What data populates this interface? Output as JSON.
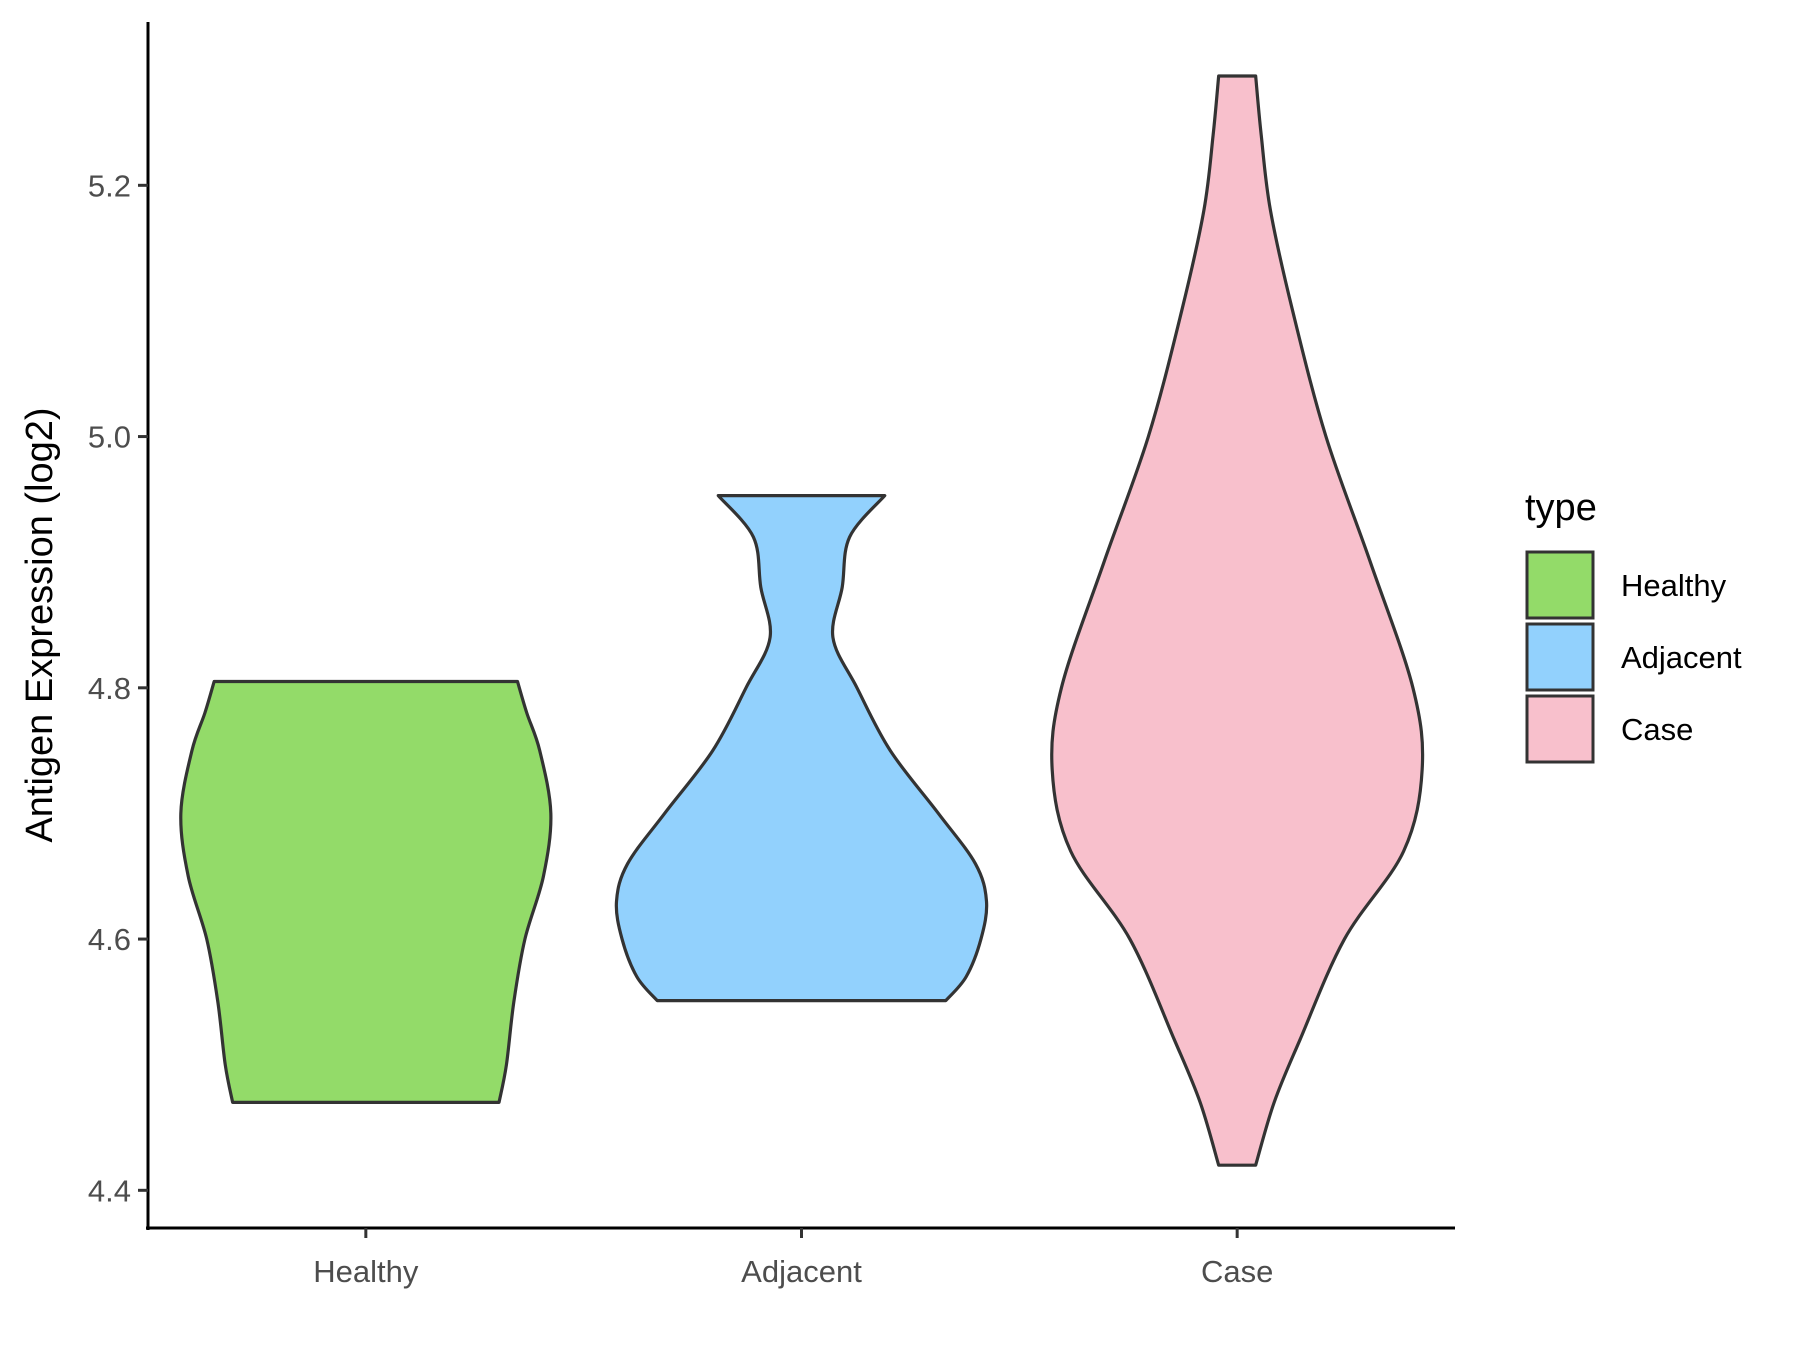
{
  "chart_data": {
    "type": "violin",
    "ylabel": "Antigen Expression (log2)",
    "xlabel": "",
    "ylim": [
      4.37,
      5.33
    ],
    "yticks": [
      4.4,
      4.6,
      4.8,
      5.0,
      5.2
    ],
    "ytick_labels": [
      "4.4",
      "4.6",
      "4.8",
      "5.0",
      "5.2"
    ],
    "categories": [
      "Healthy",
      "Adjacent",
      "Case"
    ],
    "grid": false,
    "legend": {
      "title": "type",
      "position": "right",
      "entries": [
        "Healthy",
        "Adjacent",
        "Case"
      ]
    },
    "series": [
      {
        "category": "Healthy",
        "color": "#93DB69",
        "min": 4.47,
        "max": 4.805,
        "density": [
          [
            4.47,
            0.72
          ],
          [
            4.5,
            0.76
          ],
          [
            4.55,
            0.8
          ],
          [
            4.6,
            0.86
          ],
          [
            4.65,
            0.96
          ],
          [
            4.7,
            1.0
          ],
          [
            4.75,
            0.94
          ],
          [
            4.78,
            0.87
          ],
          [
            4.805,
            0.82
          ]
        ]
      },
      {
        "category": "Adjacent",
        "color": "#92D1FD",
        "min": 4.551,
        "max": 4.953,
        "density": [
          [
            4.551,
            0.78
          ],
          [
            4.57,
            0.89
          ],
          [
            4.6,
            0.97
          ],
          [
            4.63,
            1.0
          ],
          [
            4.66,
            0.94
          ],
          [
            4.7,
            0.74
          ],
          [
            4.75,
            0.48
          ],
          [
            4.8,
            0.3
          ],
          [
            4.84,
            0.17
          ],
          [
            4.88,
            0.22
          ],
          [
            4.92,
            0.26
          ],
          [
            4.953,
            0.45
          ]
        ]
      },
      {
        "category": "Case",
        "color": "#F8C0CC",
        "min": 4.42,
        "max": 5.287,
        "density": [
          [
            4.42,
            0.1
          ],
          [
            4.47,
            0.2
          ],
          [
            4.52,
            0.34
          ],
          [
            4.6,
            0.58
          ],
          [
            4.67,
            0.9
          ],
          [
            4.735,
            1.0
          ],
          [
            4.8,
            0.95
          ],
          [
            4.9,
            0.72
          ],
          [
            5.0,
            0.48
          ],
          [
            5.1,
            0.3
          ],
          [
            5.18,
            0.18
          ],
          [
            5.24,
            0.13
          ],
          [
            5.287,
            0.1
          ]
        ]
      }
    ]
  }
}
